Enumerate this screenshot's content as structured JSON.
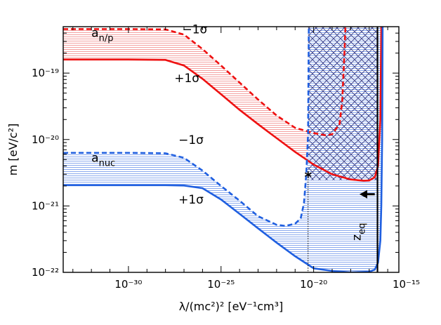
{
  "chart_data": {
    "type": "line",
    "xlabel": "λ/(mc²)² [eV⁻¹cm³]",
    "ylabel": "m [eV/c²]",
    "x_scale": "log",
    "y_scale": "log",
    "xlim": [
      3e-34,
      4e-16
    ],
    "ylim": [
      1e-22,
      5e-19
    ],
    "x_ticks": [
      {
        "value": 1e-30,
        "label": "10⁻³⁰"
      },
      {
        "value": 1e-25,
        "label": "10⁻²⁵"
      },
      {
        "value": 1e-20,
        "label": "10⁻²⁰"
      },
      {
        "value": 1e-15,
        "label": "10⁻¹⁵"
      }
    ],
    "y_ticks": [
      {
        "value": 1e-22,
        "label": "10⁻²²"
      },
      {
        "value": 1e-21,
        "label": "10⁻²¹"
      },
      {
        "value": 1e-20,
        "label": "10⁻²⁰"
      },
      {
        "value": 1e-19,
        "label": "10⁻¹⁹"
      }
    ],
    "colors": {
      "red": "#ee1111",
      "red_fill": "#f4a0a0",
      "blue": "#1f5fe0",
      "blue_fill": "#8aa9ee",
      "hatch": "#1a1a6a"
    },
    "series": [
      {
        "id": "anp-minus",
        "color": "#ee1111",
        "dash": true,
        "points": [
          [
            3e-34,
            4.6e-19
          ],
          [
            1e-30,
            4.6e-19
          ],
          [
            1e-28,
            4.55e-19
          ],
          [
            1e-27,
            3.8e-19
          ],
          [
            1e-26,
            2.3e-19
          ],
          [
            1e-25,
            1.3e-19
          ],
          [
            1e-24,
            7.2e-20
          ],
          [
            1e-23,
            4e-20
          ],
          [
            1e-22,
            2.3e-20
          ],
          [
            1e-21,
            1.5e-20
          ],
          [
            1e-20,
            1.25e-20
          ],
          [
            5e-20,
            1.15e-20
          ],
          [
            1e-19,
            1.2e-20
          ],
          [
            2.5e-19,
            1.7e-20
          ],
          [
            3.5e-19,
            3.8e-20
          ],
          [
            4.6e-19,
            2e-19
          ],
          [
            5.2e-19,
            5e-19
          ]
        ]
      },
      {
        "id": "anp-plus",
        "color": "#ee1111",
        "dash": false,
        "points": [
          [
            3e-34,
            1.6e-19
          ],
          [
            1e-30,
            1.6e-19
          ],
          [
            1e-28,
            1.58e-19
          ],
          [
            1e-27,
            1.3e-19
          ],
          [
            1e-26,
            8.2e-20
          ],
          [
            1e-25,
            4.8e-20
          ],
          [
            1e-24,
            2.8e-20
          ],
          [
            1e-23,
            1.7e-20
          ],
          [
            1e-22,
            1.05e-20
          ],
          [
            1e-21,
            6.5e-21
          ],
          [
            1e-20,
            4.2e-21
          ],
          [
            1e-19,
            3e-21
          ],
          [
            1e-18,
            2.5e-21
          ],
          [
            5e-18,
            2.4e-21
          ],
          [
            1e-17,
            2.42e-21
          ],
          [
            2e-17,
            2.7e-21
          ],
          [
            3e-17,
            4e-21
          ],
          [
            4e-17,
            2e-20
          ],
          [
            4.5e-17,
            5e-19
          ]
        ]
      },
      {
        "id": "anuc-minus",
        "color": "#1f5fe0",
        "dash": true,
        "points": [
          [
            3e-34,
            6.3e-21
          ],
          [
            1e-30,
            6.3e-21
          ],
          [
            1e-28,
            6.2e-21
          ],
          [
            1e-27,
            5.3e-21
          ],
          [
            1e-26,
            3.4e-21
          ],
          [
            1e-25,
            2e-21
          ],
          [
            1e-24,
            1.2e-21
          ],
          [
            1e-23,
            7e-22
          ],
          [
            1e-22,
            5.2e-22
          ],
          [
            3e-22,
            5e-22
          ],
          [
            1e-21,
            5.4e-22
          ],
          [
            2e-21,
            6.5e-22
          ],
          [
            3e-21,
            1.1e-21
          ],
          [
            4e-21,
            3e-21
          ],
          [
            5e-21,
            1.2e-20
          ],
          [
            5.5e-21,
            5e-19
          ]
        ]
      },
      {
        "id": "anuc-plus",
        "color": "#1f5fe0",
        "dash": false,
        "points": [
          [
            3e-34,
            2.05e-21
          ],
          [
            1e-30,
            2.05e-21
          ],
          [
            1e-28,
            2.05e-21
          ],
          [
            1e-27,
            2.03e-21
          ],
          [
            1e-26,
            1.85e-21
          ],
          [
            1e-25,
            1.25e-21
          ],
          [
            1e-24,
            7.6e-22
          ],
          [
            1e-23,
            4.6e-22
          ],
          [
            1e-22,
            2.8e-22
          ],
          [
            1e-21,
            1.75e-22
          ],
          [
            1e-20,
            1.15e-22
          ],
          [
            1e-19,
            1.05e-22
          ],
          [
            1e-18,
            1e-22
          ],
          [
            1e-17,
            1.02e-22
          ],
          [
            2e-17,
            1.1e-22
          ],
          [
            3e-17,
            1.4e-22
          ],
          [
            4e-17,
            3e-22
          ],
          [
            4.5e-17,
            1e-21
          ],
          [
            5e-17,
            1e-20
          ],
          [
            5.3e-17,
            5e-19
          ]
        ]
      }
    ],
    "bands": [
      {
        "id": "anp-band",
        "upper": "anp-minus",
        "lower": "anp-plus",
        "color": "#f4a0a0"
      },
      {
        "id": "anuc-band",
        "upper": "anuc-minus",
        "lower": "anuc-plus",
        "color": "#8aa9ee"
      }
    ],
    "hatch_region": {
      "x_from": 5e-21,
      "x_to": 2.8e-17,
      "y_from": 2.45e-21,
      "y_to": 5e-19
    },
    "zeq_line": {
      "x": 2.8e-17
    },
    "dotted_line": {
      "x": 5e-21
    },
    "marker": {
      "x": 5e-21,
      "y": 2.75e-21,
      "symbol": "*"
    },
    "annotations": {
      "anp": {
        "base": "a",
        "sub": "n/p",
        "x": 1e-32,
        "y": 3.5e-19
      },
      "anp_minus": {
        "text": "−1σ",
        "x": 8e-28,
        "y": 4.6e-19
      },
      "anp_plus": {
        "text": "+1σ",
        "x": 3e-28,
        "y": 8.5e-20
      },
      "anuc": {
        "base": "a",
        "sub": "nuc",
        "x": 1e-32,
        "y": 4.6e-21
      },
      "anuc_minus": {
        "text": "−1σ",
        "x": 5e-28,
        "y": 1e-20
      },
      "anuc_plus": {
        "text": "+1σ",
        "x": 5e-28,
        "y": 1.25e-21
      },
      "zeq": {
        "base": "z",
        "sub": "eq",
        "x": 3.4e-18,
        "y": 3e-22
      }
    },
    "arrow": {
      "x_from": 2e-17,
      "x_to": 3e-18,
      "y": 1.5e-21
    }
  }
}
